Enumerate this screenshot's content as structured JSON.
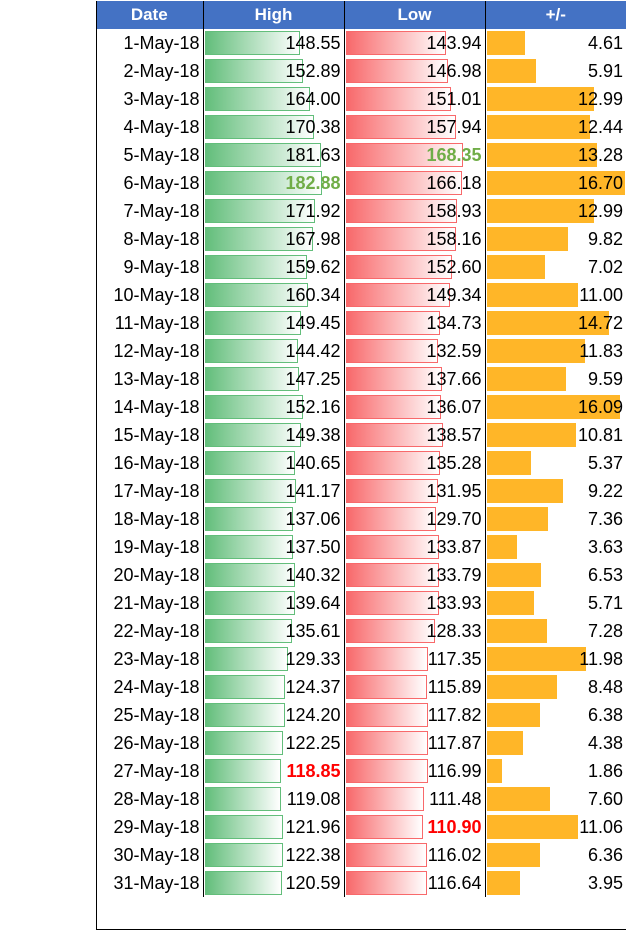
{
  "headers": {
    "date": "Date",
    "high": "High",
    "low": "Low",
    "diff": "+/-"
  },
  "colors": {
    "header": "#4472c4",
    "high_bar": "#63be7b",
    "low_bar": "#f8696b",
    "diff_bar": "#ffb628",
    "max_text": "#70ad47",
    "min_text": "#ff0000"
  },
  "bar_scale": {
    "high_max": 182.88,
    "low_max": 168.35,
    "diff_max": 16.7
  },
  "rows": [
    {
      "date": "1-May-18",
      "high": "148.55",
      "low": "143.94",
      "diff": "4.61"
    },
    {
      "date": "2-May-18",
      "high": "152.89",
      "low": "146.98",
      "diff": "5.91"
    },
    {
      "date": "3-May-18",
      "high": "164.00",
      "low": "151.01",
      "diff": "12.99"
    },
    {
      "date": "4-May-18",
      "high": "170.38",
      "low": "157.94",
      "diff": "12.44"
    },
    {
      "date": "5-May-18",
      "high": "181.63",
      "low": "168.35",
      "diff": "13.28",
      "low_style": "max"
    },
    {
      "date": "6-May-18",
      "high": "182.88",
      "low": "166.18",
      "diff": "16.70",
      "high_style": "max"
    },
    {
      "date": "7-May-18",
      "high": "171.92",
      "low": "158.93",
      "diff": "12.99"
    },
    {
      "date": "8-May-18",
      "high": "167.98",
      "low": "158.16",
      "diff": "9.82"
    },
    {
      "date": "9-May-18",
      "high": "159.62",
      "low": "152.60",
      "diff": "7.02"
    },
    {
      "date": "10-May-18",
      "high": "160.34",
      "low": "149.34",
      "diff": "11.00"
    },
    {
      "date": "11-May-18",
      "high": "149.45",
      "low": "134.73",
      "diff": "14.72"
    },
    {
      "date": "12-May-18",
      "high": "144.42",
      "low": "132.59",
      "diff": "11.83"
    },
    {
      "date": "13-May-18",
      "high": "147.25",
      "low": "137.66",
      "diff": "9.59"
    },
    {
      "date": "14-May-18",
      "high": "152.16",
      "low": "136.07",
      "diff": "16.09"
    },
    {
      "date": "15-May-18",
      "high": "149.38",
      "low": "138.57",
      "diff": "10.81"
    },
    {
      "date": "16-May-18",
      "high": "140.65",
      "low": "135.28",
      "diff": "5.37"
    },
    {
      "date": "17-May-18",
      "high": "141.17",
      "low": "131.95",
      "diff": "9.22"
    },
    {
      "date": "18-May-18",
      "high": "137.06",
      "low": "129.70",
      "diff": "7.36"
    },
    {
      "date": "19-May-18",
      "high": "137.50",
      "low": "133.87",
      "diff": "3.63"
    },
    {
      "date": "20-May-18",
      "high": "140.32",
      "low": "133.79",
      "diff": "6.53"
    },
    {
      "date": "21-May-18",
      "high": "139.64",
      "low": "133.93",
      "diff": "5.71"
    },
    {
      "date": "22-May-18",
      "high": "135.61",
      "low": "128.33",
      "diff": "7.28"
    },
    {
      "date": "23-May-18",
      "high": "129.33",
      "low": "117.35",
      "diff": "11.98"
    },
    {
      "date": "24-May-18",
      "high": "124.37",
      "low": "115.89",
      "diff": "8.48"
    },
    {
      "date": "25-May-18",
      "high": "124.20",
      "low": "117.82",
      "diff": "6.38"
    },
    {
      "date": "26-May-18",
      "high": "122.25",
      "low": "117.87",
      "diff": "4.38"
    },
    {
      "date": "27-May-18",
      "high": "118.85",
      "low": "116.99",
      "diff": "1.86",
      "high_style": "min"
    },
    {
      "date": "28-May-18",
      "high": "119.08",
      "low": "111.48",
      "diff": "7.60"
    },
    {
      "date": "29-May-18",
      "high": "121.96",
      "low": "110.90",
      "diff": "11.06",
      "low_style": "min"
    },
    {
      "date": "30-May-18",
      "high": "122.38",
      "low": "116.02",
      "diff": "6.36"
    },
    {
      "date": "31-May-18",
      "high": "120.59",
      "low": "116.64",
      "diff": "3.95"
    }
  ]
}
